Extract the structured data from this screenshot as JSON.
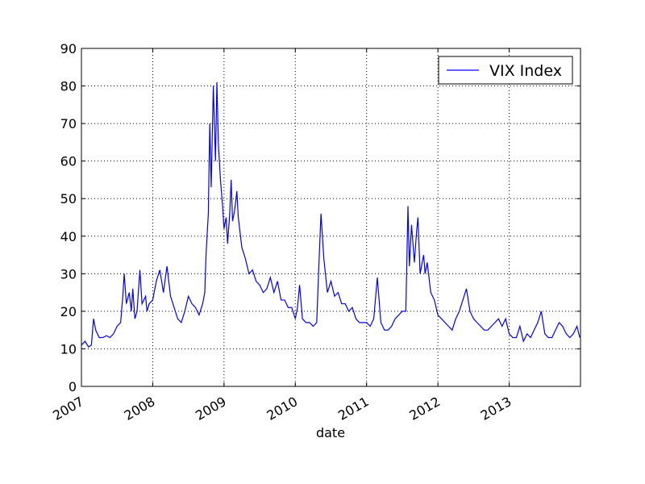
{
  "chart_data": {
    "type": "line",
    "x": [
      2007.0,
      2007.05,
      2007.1,
      2007.14,
      2007.17,
      2007.2,
      2007.25,
      2007.3,
      2007.35,
      2007.4,
      2007.45,
      2007.5,
      2007.55,
      2007.58,
      2007.6,
      2007.63,
      2007.67,
      2007.7,
      2007.72,
      2007.75,
      2007.78,
      2007.82,
      2007.85,
      2007.9,
      2007.92,
      2007.95,
      2008.0,
      2008.05,
      2008.1,
      2008.15,
      2008.2,
      2008.25,
      2008.3,
      2008.35,
      2008.4,
      2008.45,
      2008.5,
      2008.55,
      2008.6,
      2008.65,
      2008.7,
      2008.73,
      2008.75,
      2008.78,
      2008.8,
      2008.82,
      2008.85,
      2008.88,
      2008.9,
      2008.92,
      2008.95,
      2008.98,
      2009.0,
      2009.03,
      2009.05,
      2009.08,
      2009.1,
      2009.12,
      2009.15,
      2009.18,
      2009.2,
      2009.25,
      2009.3,
      2009.35,
      2009.4,
      2009.45,
      2009.5,
      2009.55,
      2009.6,
      2009.65,
      2009.7,
      2009.75,
      2009.8,
      2009.85,
      2009.9,
      2009.95,
      2010.0,
      2010.03,
      2010.06,
      2010.1,
      2010.15,
      2010.2,
      2010.25,
      2010.3,
      2010.33,
      2010.36,
      2010.4,
      2010.45,
      2010.5,
      2010.55,
      2010.6,
      2010.65,
      2010.7,
      2010.75,
      2010.8,
      2010.85,
      2010.9,
      2010.95,
      2011.0,
      2011.05,
      2011.1,
      2011.15,
      2011.2,
      2011.25,
      2011.3,
      2011.35,
      2011.4,
      2011.45,
      2011.5,
      2011.55,
      2011.58,
      2011.6,
      2011.63,
      2011.67,
      2011.7,
      2011.72,
      2011.75,
      2011.8,
      2011.82,
      2011.85,
      2011.9,
      2011.95,
      2012.0,
      2012.05,
      2012.1,
      2012.15,
      2012.2,
      2012.25,
      2012.3,
      2012.35,
      2012.4,
      2012.45,
      2012.5,
      2012.55,
      2012.6,
      2012.65,
      2012.7,
      2012.75,
      2012.8,
      2012.85,
      2012.9,
      2012.95,
      2013.0,
      2013.05,
      2013.1,
      2013.15,
      2013.2,
      2013.25,
      2013.3,
      2013.35,
      2013.4,
      2013.45,
      2013.5,
      2013.55,
      2013.6,
      2013.65,
      2013.7,
      2013.75,
      2013.8,
      2013.85,
      2013.9,
      2013.95,
      2013.99
    ],
    "series": [
      {
        "name": "VIX Index",
        "color": "#0000ff",
        "values": [
          11,
          12,
          10.5,
          11,
          18,
          15,
          13,
          13,
          13.5,
          13,
          14,
          16,
          17,
          24,
          30,
          22,
          25,
          20,
          26,
          18,
          20,
          31,
          22,
          24,
          20,
          22,
          23,
          28,
          31,
          25,
          32,
          24,
          21,
          18,
          17,
          20,
          24,
          22,
          21,
          19,
          22,
          25,
          36,
          46,
          70,
          53,
          80,
          60,
          81,
          65,
          55,
          48,
          42,
          45,
          38,
          46,
          55,
          44,
          47,
          52,
          45,
          37,
          34,
          30,
          31,
          28,
          27,
          25,
          26,
          29,
          25,
          28,
          23,
          23,
          21,
          21,
          18,
          21,
          27,
          18,
          17,
          17,
          16,
          17,
          32,
          46,
          34,
          25,
          28,
          24,
          25,
          22,
          22,
          20,
          21,
          18,
          17,
          17,
          17,
          16,
          18,
          29,
          17,
          15,
          15,
          16,
          18,
          19,
          20,
          20,
          48,
          32,
          43,
          33,
          41,
          45,
          30,
          35,
          30,
          33,
          25,
          23,
          19,
          18,
          17,
          16,
          15,
          18,
          20,
          23,
          26,
          20,
          18,
          17,
          16,
          15,
          15,
          16,
          17,
          18,
          16,
          18,
          14,
          13,
          13,
          16,
          12,
          14,
          13,
          15,
          17,
          20,
          14,
          13,
          13,
          15,
          17,
          16,
          14,
          13,
          14,
          16,
          13
        ]
      }
    ],
    "xlim": [
      2007,
      2014
    ],
    "xticks": [
      2007,
      2008,
      2009,
      2010,
      2011,
      2012,
      2013
    ],
    "ylim": [
      0,
      90
    ],
    "yticks": [
      0,
      10,
      20,
      30,
      40,
      50,
      60,
      70,
      80,
      90
    ],
    "xlabel": "date",
    "grid": true,
    "legend": "upper right"
  }
}
